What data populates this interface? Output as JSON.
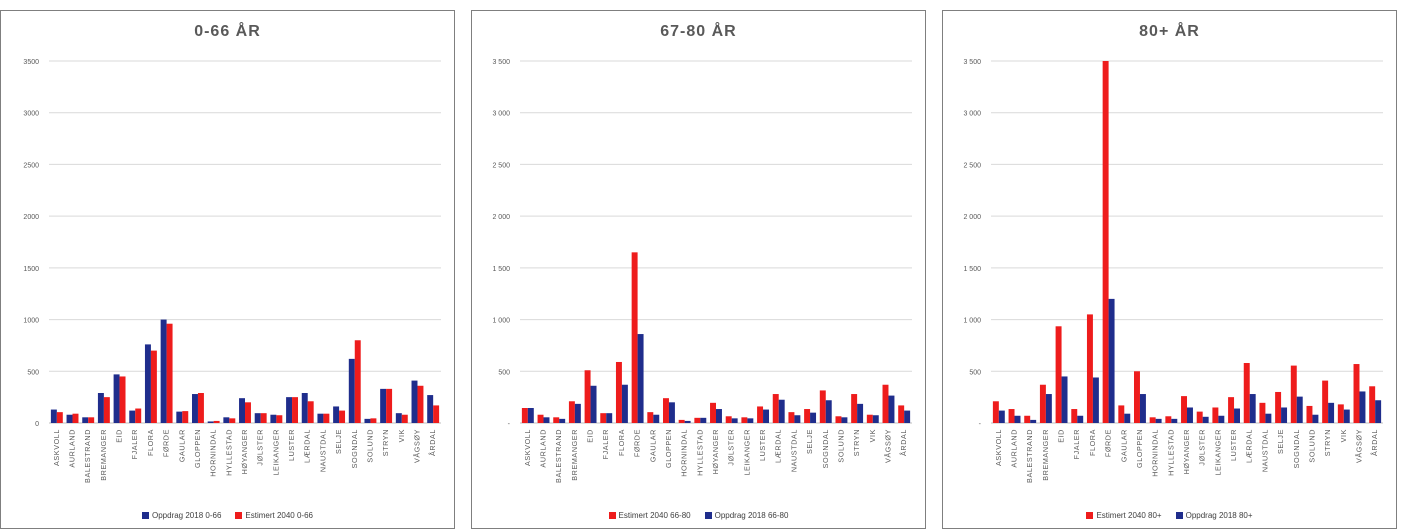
{
  "colors": {
    "navy": "#1f2d8c",
    "red": "#ee1c1c",
    "grid": "#d9d9d9",
    "axis": "#bfbfbf",
    "text": "#595959"
  },
  "chart_data": [
    {
      "type": "bar",
      "title": "0-66 ÅR",
      "categories": [
        "ASKVOLL",
        "AURLAND",
        "BALESTRAND",
        "BREMANGER",
        "EID",
        "FJALER",
        "FLORA",
        "FØRDE",
        "GAULAR",
        "GLOPPEN",
        "HORNINDAL",
        "HYLLESTAD",
        "HØYANGER",
        "JØLSTER",
        "LEIKANGER",
        "LUSTER",
        "LÆRDAL",
        "NAUSTDAL",
        "SELJE",
        "SOGNDAL",
        "SOLUND",
        "STRYN",
        "VIK",
        "VÅGSØY",
        "ÅRDAL"
      ],
      "ylim": [
        0,
        3500
      ],
      "yticks": [
        0,
        500,
        1000,
        1500,
        2000,
        2500,
        3000,
        3500
      ],
      "ytick_labels": [
        "0",
        "500",
        "1000",
        "1500",
        "2000",
        "2500",
        "3000",
        "3500"
      ],
      "grid": true,
      "legend_position": "bottom",
      "series": [
        {
          "name": "Oppdrag 2018 0-66",
          "color": "#1f2d8c",
          "values": [
            130,
            80,
            55,
            290,
            470,
            120,
            760,
            1000,
            110,
            280,
            15,
            55,
            240,
            95,
            80,
            250,
            290,
            90,
            160,
            620,
            40,
            330,
            95,
            410,
            270
          ]
        },
        {
          "name": "Estimert 2040 0-66",
          "color": "#ee1c1c",
          "values": [
            105,
            90,
            55,
            250,
            450,
            140,
            700,
            960,
            115,
            290,
            20,
            45,
            200,
            95,
            75,
            250,
            210,
            90,
            120,
            800,
            45,
            330,
            80,
            360,
            170
          ]
        }
      ]
    },
    {
      "type": "bar",
      "title": "67-80 ÅR",
      "categories": [
        "ASKVOLL",
        "AURLAND",
        "BALESTRAND",
        "BREMANGER",
        "EID",
        "FJALER",
        "FLORA",
        "FØRDE",
        "GAULAR",
        "GLOPPEN",
        "HORNINDAL",
        "HYLLESTAD",
        "HØYANGER",
        "JØLSTER",
        "LEIKANGER",
        "LUSTER",
        "LÆRDAL",
        "NAUSTDAL",
        "SELJE",
        "SOGNDAL",
        "SOLUND",
        "STRYN",
        "VIK",
        "VÅGSØY",
        "ÅRDAL"
      ],
      "ylim": [
        0,
        3500
      ],
      "yticks": [
        0,
        500,
        1000,
        1500,
        2000,
        2500,
        3000,
        3500
      ],
      "ytick_labels": [
        "-",
        "500",
        "1 000",
        "1 500",
        "2 000",
        "2 500",
        "3 000",
        "3 500"
      ],
      "grid": true,
      "legend_position": "bottom",
      "series": [
        {
          "name": "Estimert 2040 66-80",
          "color": "#ee1c1c",
          "values": [
            145,
            80,
            55,
            210,
            510,
            95,
            590,
            1650,
            105,
            240,
            30,
            50,
            195,
            65,
            55,
            160,
            280,
            105,
            135,
            315,
            65,
            280,
            80,
            370,
            170
          ]
        },
        {
          "name": "Oppdrag 2018 66-80",
          "color": "#1f2d8c",
          "values": [
            145,
            55,
            40,
            185,
            360,
            95,
            370,
            860,
            80,
            200,
            20,
            50,
            135,
            45,
            45,
            130,
            225,
            75,
            100,
            220,
            55,
            185,
            75,
            265,
            120
          ]
        }
      ]
    },
    {
      "type": "bar",
      "title": "80+ ÅR",
      "categories": [
        "ASKVOLL",
        "AURLAND",
        "BALESTRAND",
        "BREMANGER",
        "EID",
        "FJALER",
        "FLORA",
        "FØRDE",
        "GAULAR",
        "GLOPPEN",
        "HORNINDAL",
        "HYLLESTAD",
        "HØYANGER",
        "JØLSTER",
        "LEIKANGER",
        "LUSTER",
        "LÆRDAL",
        "NAUSTDAL",
        "SELJE",
        "SOGNDAL",
        "SOLUND",
        "STRYN",
        "VIK",
        "VÅGSØY",
        "ÅRDAL"
      ],
      "ylim": [
        0,
        3500
      ],
      "yticks": [
        0,
        500,
        1000,
        1500,
        2000,
        2500,
        3000,
        3500
      ],
      "ytick_labels": [
        "-",
        "500",
        "1 000",
        "1 500",
        "2 000",
        "2 500",
        "3 000",
        "3 500"
      ],
      "grid": true,
      "legend_position": "bottom",
      "series": [
        {
          "name": "Estimert 2040 80+",
          "color": "#ee1c1c",
          "values": [
            210,
            135,
            70,
            370,
            935,
            135,
            1050,
            3500,
            170,
            500,
            55,
            65,
            260,
            110,
            150,
            250,
            580,
            195,
            300,
            555,
            165,
            410,
            180,
            570,
            355
          ]
        },
        {
          "name": "Oppdrag 2018 80+",
          "color": "#1f2d8c",
          "values": [
            120,
            70,
            30,
            280,
            450,
            70,
            440,
            1200,
            90,
            280,
            40,
            40,
            150,
            60,
            70,
            140,
            280,
            90,
            150,
            255,
            80,
            195,
            130,
            305,
            220
          ]
        }
      ]
    }
  ]
}
